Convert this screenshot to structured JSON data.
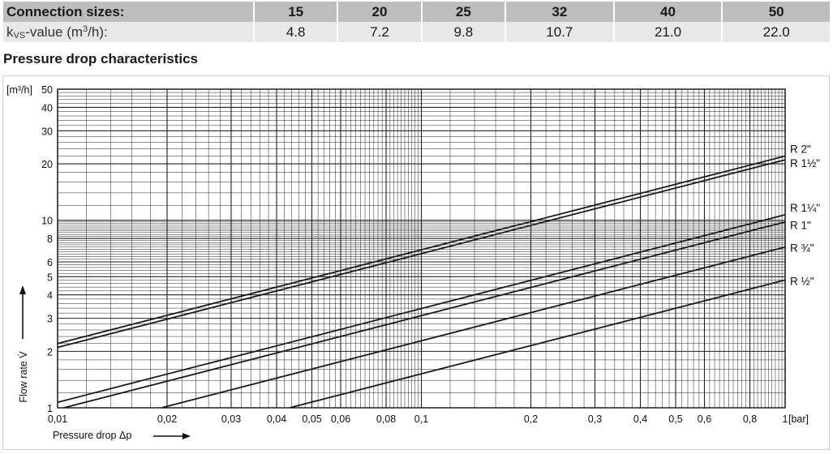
{
  "table": {
    "header_label": "Connection sizes:",
    "sizes": [
      "15",
      "20",
      "25",
      "32",
      "40",
      "50"
    ],
    "kvs_label_k": "k",
    "kvs_label_sub": "VS",
    "kvs_label_rest": "-value (m",
    "kvs_label_sup": "3",
    "kvs_label_end": "/h):",
    "kvs_values": [
      "4.8",
      "7.2",
      "9.8",
      "10.7",
      "21.0",
      "22.0"
    ]
  },
  "section_title": "Pressure drop characteristics",
  "chart_data": {
    "type": "line",
    "title": "Pressure drop characteristics",
    "xscale": "log",
    "yscale": "log",
    "xlim": [
      0.01,
      1
    ],
    "ylim": [
      1,
      50
    ],
    "grid": true,
    "xlabel": "Pressure drop Δp",
    "ylabel": "Flow rate V̇",
    "y_unit": "[m³/h]",
    "x_unit": "[bar]",
    "x_tick_labels": [
      "0,01",
      "0,02",
      "0,03",
      "0,04",
      "0,05",
      "0,06",
      "0,08",
      "0,1",
      "0,2",
      "0,3",
      "0,4",
      "0,5",
      "0,6",
      "0,8",
      "1"
    ],
    "x_tick_values": [
      0.01,
      0.02,
      0.03,
      0.04,
      0.05,
      0.06,
      0.08,
      0.1,
      0.2,
      0.3,
      0.4,
      0.5,
      0.6,
      0.8,
      1
    ],
    "y_tick_labels": [
      "1",
      "2",
      "3",
      "4",
      "5",
      "6",
      "8",
      "10",
      "20",
      "30",
      "40",
      "50"
    ],
    "y_tick_values": [
      1,
      2,
      3,
      4,
      5,
      6,
      8,
      10,
      20,
      30,
      40,
      50
    ],
    "series": [
      {
        "name": "R 2\"",
        "kvs": 22.0,
        "x": [
          0.01,
          1
        ],
        "y": [
          2.2,
          22.0
        ]
      },
      {
        "name": "R 1½\"",
        "kvs": 21.0,
        "x": [
          0.01,
          1
        ],
        "y": [
          2.1,
          21.0
        ]
      },
      {
        "name": "R 1¼\"",
        "kvs": 10.7,
        "x": [
          0.01,
          1
        ],
        "y": [
          1.07,
          10.7
        ]
      },
      {
        "name": "R 1\"",
        "kvs": 9.8,
        "x": [
          0.0104,
          1
        ],
        "y": [
          1.0,
          9.8
        ]
      },
      {
        "name": "R ¾\"",
        "kvs": 7.2,
        "x": [
          0.0193,
          1
        ],
        "y": [
          1.0,
          7.2
        ]
      },
      {
        "name": "R ½\"",
        "kvs": 4.8,
        "x": [
          0.0434,
          1
        ],
        "y": [
          1.0,
          4.8
        ]
      }
    ]
  },
  "colors": {
    "header_bg": "#bdbdbd",
    "row_bg": "#e8e8e8",
    "line": "#1a1a1a"
  }
}
